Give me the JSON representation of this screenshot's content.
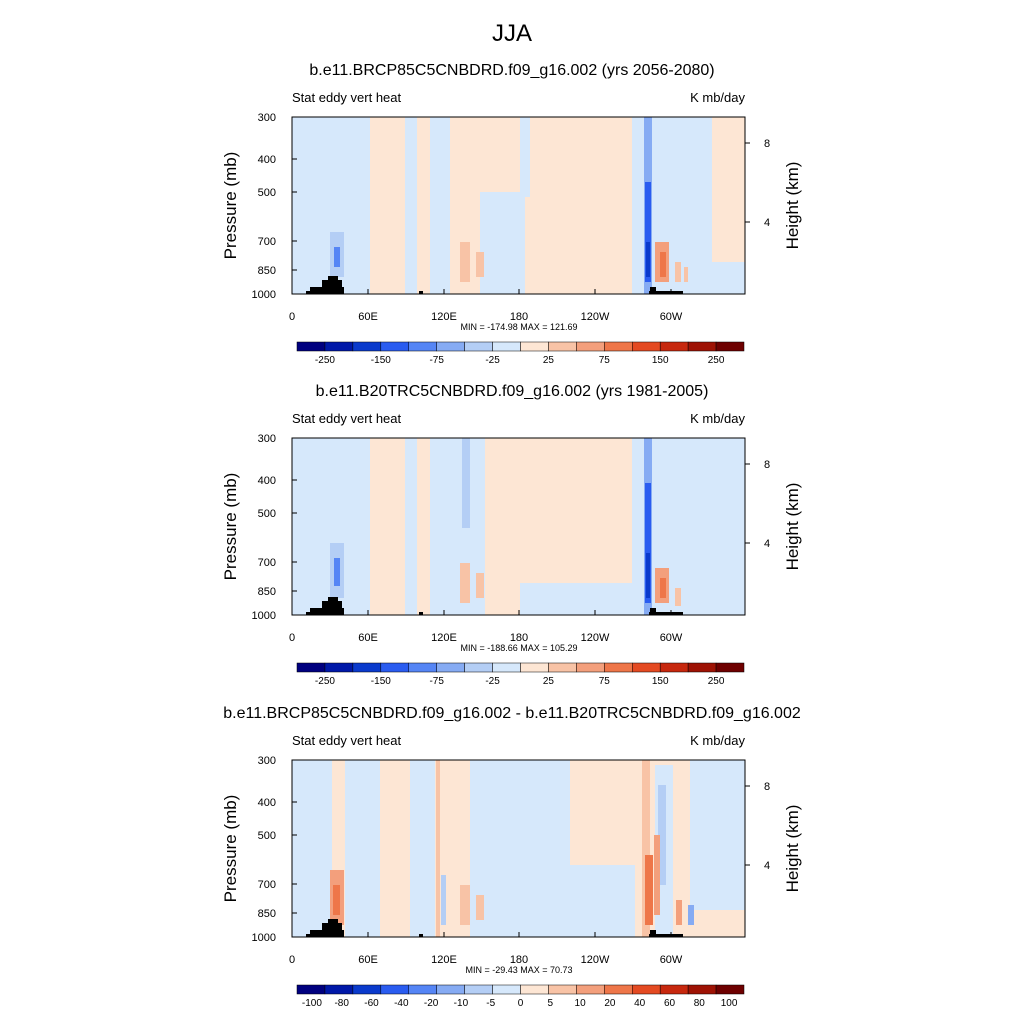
{
  "title": "JJA",
  "chart_data": [
    {
      "type": "heatmap",
      "title": "b.e11.BRCP85C5CNBDRD.f09_g16.002 (yrs 2056-2080)",
      "left_label": "Stat eddy vert heat",
      "right_label": "K mb/day",
      "ylabel": "Pressure (mb)",
      "y2label": "Height (km)",
      "x_ticks": [
        "0",
        "60E",
        "120E",
        "180",
        "120W",
        "60W"
      ],
      "y_ticks": [
        "300",
        "400",
        "500",
        "700",
        "850",
        "1000"
      ],
      "y2_ticks": [
        "8",
        "4"
      ],
      "stats": "MIN = -174.98  MAX = 121.69",
      "colorbar_labels": [
        "-250",
        "-150",
        "-75",
        "-25",
        "25",
        "75",
        "150",
        "250"
      ],
      "colorbar_colors": [
        "#00007f",
        "#0018a8",
        "#0a3acc",
        "#2a5cf0",
        "#5585f5",
        "#86abf3",
        "#b4cef5",
        "#d6e8fb",
        "#fde6d4",
        "#f8c3a6",
        "#f39f7c",
        "#ee7649",
        "#e44a22",
        "#c7280e",
        "#9e1204",
        "#6e0000"
      ],
      "data_range": [
        -174.98,
        121.69
      ]
    },
    {
      "type": "heatmap",
      "title": "b.e11.B20TRC5CNBDRD.f09_g16.002 (yrs 1981-2005)",
      "left_label": "Stat eddy vert heat",
      "right_label": "K mb/day",
      "ylabel": "Pressure (mb)",
      "y2label": "Height (km)",
      "x_ticks": [
        "0",
        "60E",
        "120E",
        "180",
        "120W",
        "60W"
      ],
      "y_ticks": [
        "300",
        "400",
        "500",
        "700",
        "850",
        "1000"
      ],
      "y2_ticks": [
        "8",
        "4"
      ],
      "stats": "MIN = -188.66  MAX = 105.29",
      "colorbar_labels": [
        "-250",
        "-150",
        "-75",
        "-25",
        "25",
        "75",
        "150",
        "250"
      ],
      "colorbar_colors": [
        "#00007f",
        "#0018a8",
        "#0a3acc",
        "#2a5cf0",
        "#5585f5",
        "#86abf3",
        "#b4cef5",
        "#d6e8fb",
        "#fde6d4",
        "#f8c3a6",
        "#f39f7c",
        "#ee7649",
        "#e44a22",
        "#c7280e",
        "#9e1204",
        "#6e0000"
      ],
      "data_range": [
        -188.66,
        105.29
      ]
    },
    {
      "type": "heatmap",
      "title": "b.e11.BRCP85C5CNBDRD.f09_g16.002 - b.e11.B20TRC5CNBDRD.f09_g16.002",
      "left_label": "Stat eddy vert heat",
      "right_label": "K mb/day",
      "ylabel": "Pressure (mb)",
      "y2label": "Height (km)",
      "x_ticks": [
        "0",
        "60E",
        "120E",
        "180",
        "120W",
        "60W"
      ],
      "y_ticks": [
        "300",
        "400",
        "500",
        "700",
        "850",
        "1000"
      ],
      "y2_ticks": [
        "8",
        "4"
      ],
      "stats": "MIN = -29.43  MAX =  70.73",
      "colorbar_labels": [
        "-100",
        "-80",
        "-60",
        "-40",
        "-20",
        "-10",
        "-5",
        "0",
        "5",
        "10",
        "20",
        "40",
        "60",
        "80",
        "100"
      ],
      "colorbar_colors": [
        "#00007f",
        "#0018a8",
        "#0a3acc",
        "#2a5cf0",
        "#5585f5",
        "#86abf3",
        "#b4cef5",
        "#d6e8fb",
        "#fde6d4",
        "#f8c3a6",
        "#f39f7c",
        "#ee7649",
        "#e44a22",
        "#c7280e",
        "#9e1204",
        "#6e0000"
      ],
      "data_range": [
        -29.43,
        70.73
      ]
    }
  ]
}
